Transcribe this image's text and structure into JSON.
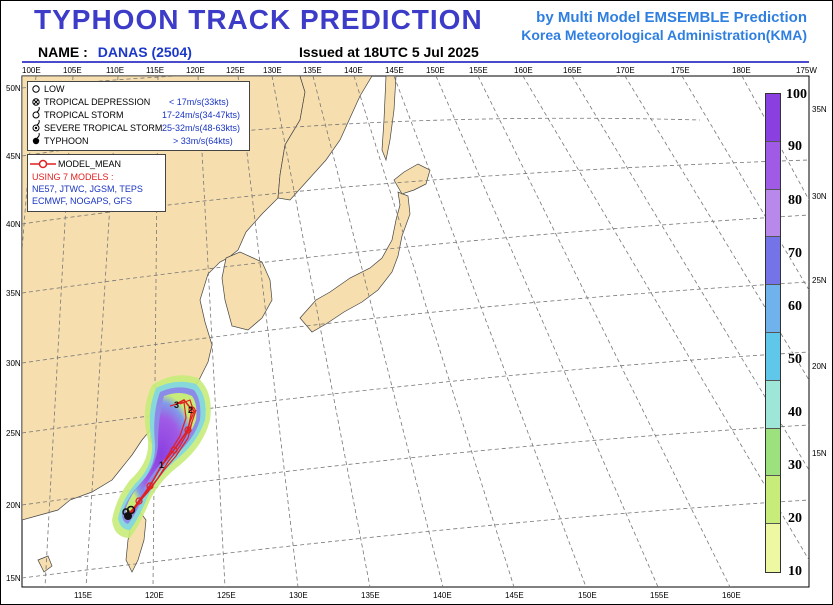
{
  "header": {
    "title": "TYPHOON  TRACK  PREDICTION",
    "credit_line1": "by Multi Model EMSEMBLE Prediction",
    "credit_line2": "Korea Meteorological Administration(KMA)",
    "name_label": "NAME :",
    "name_value": "DANAS (2504)",
    "issued": "Issued at  18UTC  5 Jul 2025"
  },
  "top_lon_labels": [
    "100E",
    "105E",
    "110E",
    "115E",
    "120E",
    "125E",
    "130E",
    "135E",
    "140E",
    "145E",
    "150E",
    "155E",
    "160E",
    "165E",
    "170E",
    "175E",
    "180E",
    "175W"
  ],
  "bottom_lon_labels": [
    "115E",
    "120E",
    "125E",
    "130E",
    "135E",
    "140E",
    "145E",
    "150E",
    "155E",
    "160E"
  ],
  "left_lat_labels": [
    "50N",
    "45N",
    "40N",
    "35N",
    "30N",
    "25N",
    "20N",
    "15N"
  ],
  "right_lat_labels": [
    "35N",
    "30N",
    "25N",
    "20N",
    "15N"
  ],
  "legend_intensity": {
    "items": [
      {
        "label": "LOW",
        "value": "",
        "icon": "low-icon"
      },
      {
        "label": "TROPICAL DEPRESSION",
        "value": "< 17m/s(33kts)",
        "icon": "tropical-depression-icon"
      },
      {
        "label": "TROPICAL STORM",
        "value": "17-24m/s(34-47kts)",
        "icon": "tropical-storm-icon"
      },
      {
        "label": "SEVERE TROPICAL STORM",
        "value": "25-32m/s(48-63kts)",
        "icon": "severe-tropical-storm-icon"
      },
      {
        "label": "TYPHOON",
        "value": "> 33m/s(64kts)",
        "icon": "typhoon-icon"
      }
    ]
  },
  "legend_models": {
    "mean_label": "MODEL_MEAN",
    "using": "USING 7 MODELS :",
    "models_line1": "NE57, JTWC, JGSM, TEPS",
    "models_line2": "ECMWF, NOGAPS, GFS"
  },
  "track": {
    "day_markers": [
      "1",
      "2",
      "3"
    ]
  },
  "colorbar": {
    "labels": [
      "100",
      "90",
      "80",
      "70",
      "60",
      "50",
      "40",
      "30",
      "20",
      "10"
    ],
    "colors": [
      "#8a3fe0",
      "#a05be6",
      "#b889ea",
      "#7474e8",
      "#6fb2ec",
      "#5fc8ea",
      "#9ee6d8",
      "#9de07e",
      "#c8ec7a",
      "#eef7a2"
    ]
  },
  "colors": {
    "land": "#f6deae",
    "sea": "#ffffff",
    "accent": "#3c3cc8",
    "track": "#e02020"
  }
}
